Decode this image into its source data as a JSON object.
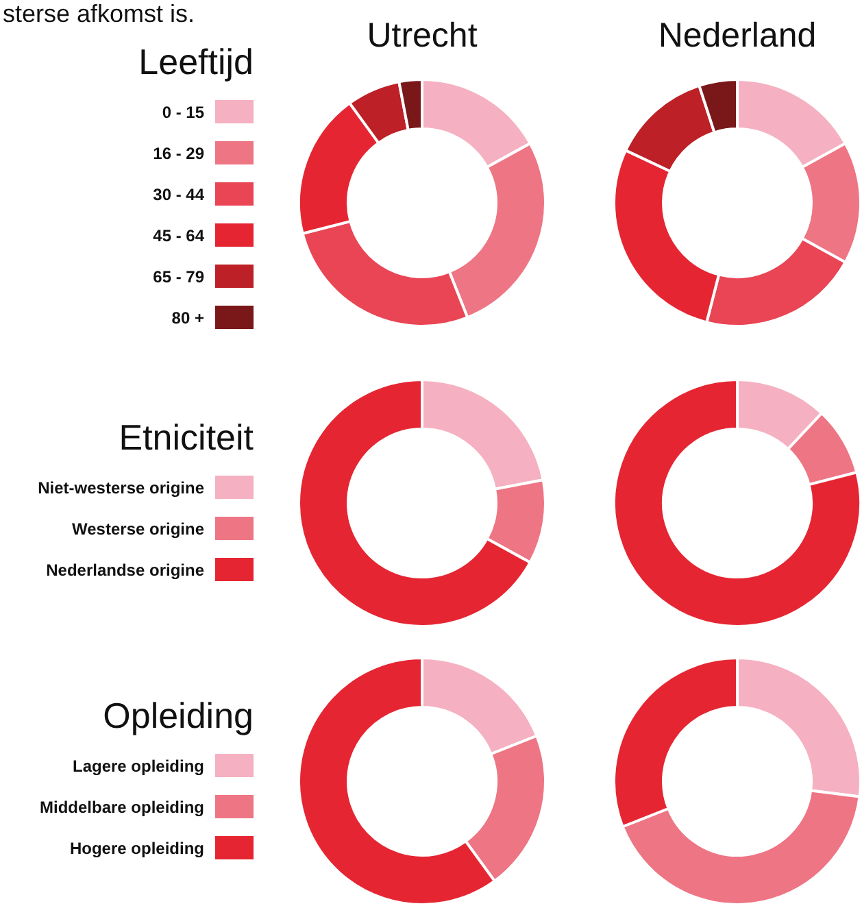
{
  "chart_data": [
    {
      "type": "donut",
      "legend_title": "Leeftijd",
      "legend": "left",
      "annotations": [
        "sterse afkomst is."
      ],
      "categories": [
        "0 - 15",
        "16 - 29",
        "30 - 44",
        "45 - 64",
        "65 - 79",
        "80 +"
      ],
      "colors": [
        "#f5b1c1",
        "#ee7584",
        "#e94555",
        "#e52632",
        "#bd2026",
        "#7a1719"
      ],
      "series": [
        {
          "name": "Utrecht",
          "values": [
            17,
            27,
            27,
            19,
            7,
            3
          ]
        },
        {
          "name": "Nederland",
          "values": [
            17,
            16,
            21,
            28,
            13,
            5
          ]
        }
      ]
    },
    {
      "type": "donut",
      "legend_title": "Etniciteit",
      "legend": "left",
      "categories": [
        "Niet-westerse origine",
        "Westerse origine",
        "Nederlandse origine"
      ],
      "colors": [
        "#f5b1c1",
        "#ee7584",
        "#e52632"
      ],
      "series": [
        {
          "values": [
            22,
            11,
            67
          ]
        },
        {
          "values": [
            12,
            9,
            79
          ]
        }
      ]
    },
    {
      "type": "donut",
      "legend_title": "Opleiding",
      "legend": "left",
      "categories": [
        "Lagere opleiding",
        "Middelbare opleiding",
        "Hogere opleiding"
      ],
      "colors": [
        "#f5b1c1",
        "#ee7584",
        "#e52632"
      ],
      "series": [
        {
          "values": [
            19,
            21,
            60
          ]
        },
        {
          "values": [
            27,
            42,
            31
          ]
        }
      ]
    }
  ]
}
